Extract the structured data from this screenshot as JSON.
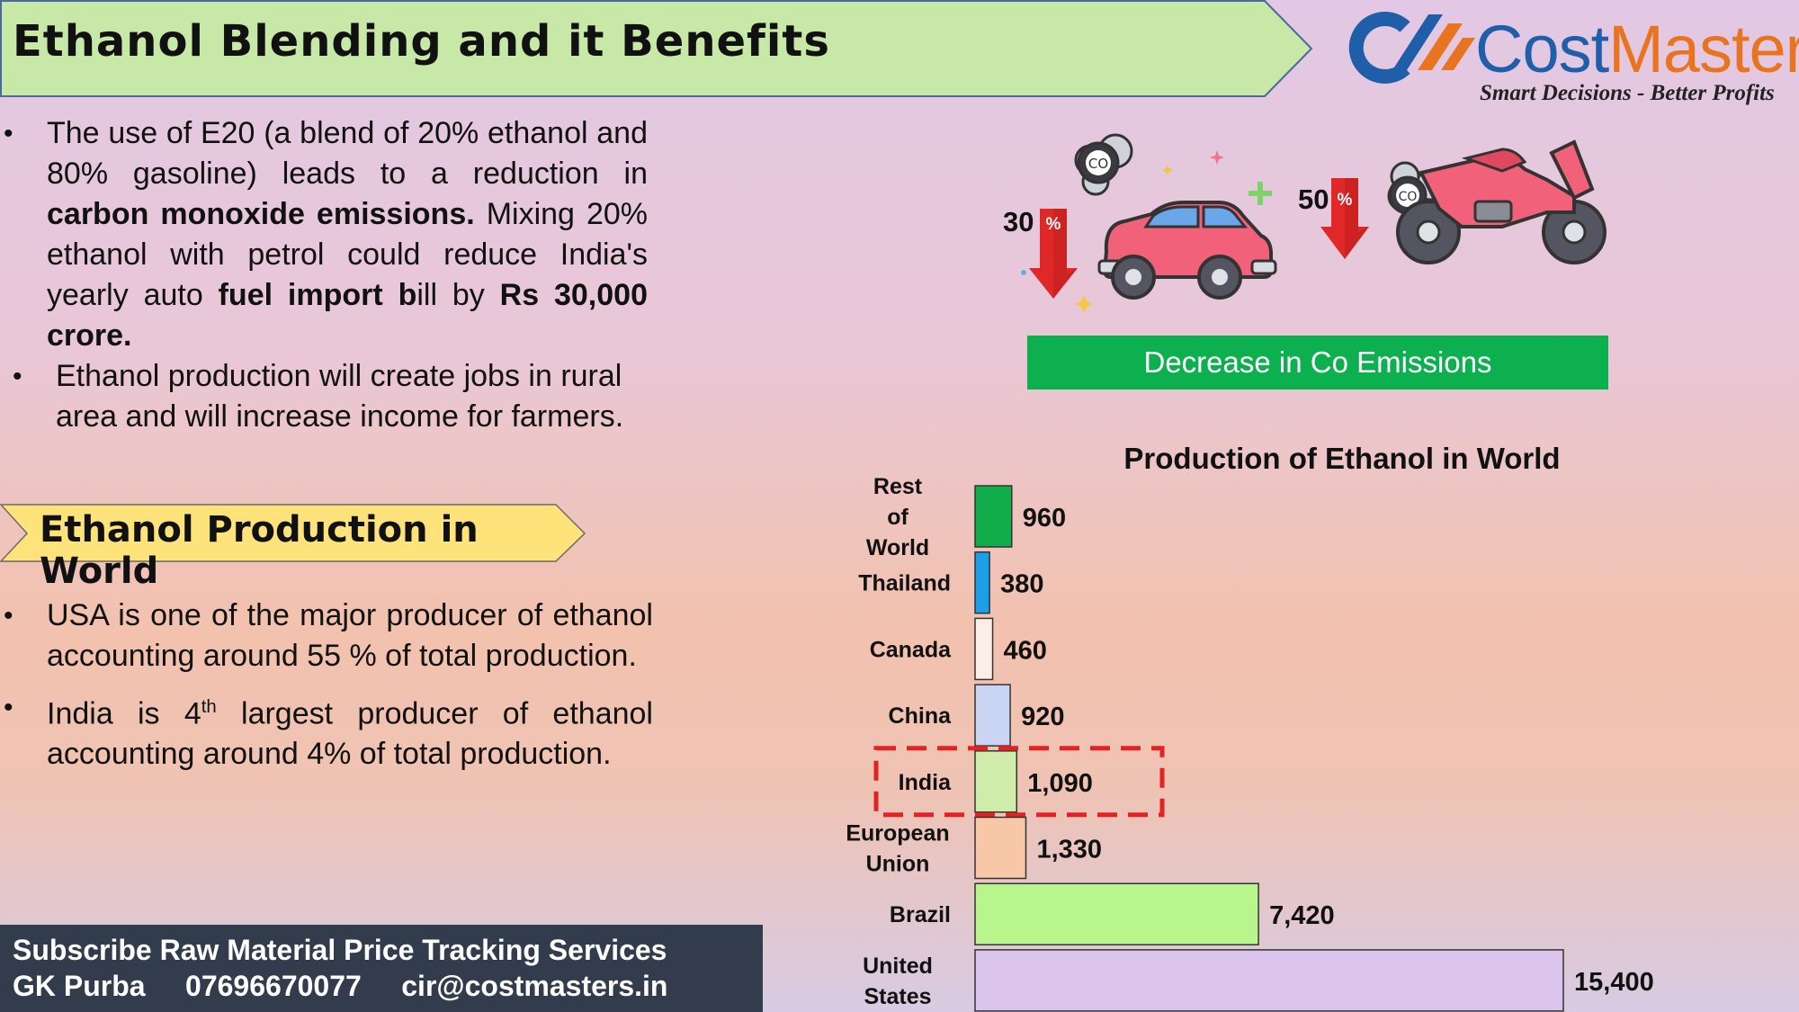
{
  "title": "Ethanol Blending and it Benefits",
  "logo": {
    "name_part1": "Cost",
    "name_part2": "Masters",
    "tagline": "Smart Decisions - Better Profits"
  },
  "bullets_top": [
    {
      "parts": [
        {
          "t": "The use of E20 (a blend of 20% ethanol and 80% gasoline) leads to a reduction in ",
          "b": false
        },
        {
          "t": "carbon monoxide emissions.",
          "b": true
        },
        {
          "t": " Mixing 20% ethanol with petrol could reduce India's yearly auto ",
          "b": false
        },
        {
          "t": "fuel import b",
          "b": true
        },
        {
          "t": "ill by ",
          "b": false
        },
        {
          "t": "Rs 30,000 crore.",
          "b": true
        }
      ]
    },
    {
      "parts": [
        {
          "t": "Ethanol production will create jobs in rural area and will increase income for farmers.",
          "b": false
        }
      ]
    }
  ],
  "section_heading": "Ethanol Production in World",
  "bullets_bottom": {
    "b1": "USA is one of the major producer of ethanol accounting around 55 % of total production.",
    "b2_pre": "India is 4",
    "b2_sup": "th",
    "b2_post": " largest producer of ethanol accounting around 4% of total production."
  },
  "footer": {
    "line1": "Subscribe Raw Material Price Tracking Services",
    "name": "GK Purba",
    "phone": "07696670077",
    "email": "cir@costmasters.in"
  },
  "emissions": {
    "car_reduction": "30",
    "bike_reduction": "50",
    "percent_symbol": "%",
    "co_label": "CO",
    "banner": "Decrease in Co Emissions"
  },
  "chart_data": {
    "type": "bar",
    "orientation": "horizontal",
    "title": "Production of Ethanol in World",
    "categories": [
      "Rest of World",
      "Thailand",
      "Canada",
      "China",
      "India",
      "European Union",
      "Brazil",
      "United States"
    ],
    "values": [
      960,
      380,
      460,
      920,
      1090,
      1330,
      7420,
      15400
    ],
    "value_labels": [
      "960",
      "380",
      "460",
      "920",
      "1,090",
      "1,330",
      "7,420",
      "15,400"
    ],
    "bar_colors": [
      "#10ad4a",
      "#1b9fe8",
      "#fbeee6",
      "#c9d5f2",
      "#cfecaa",
      "#f7c7a8",
      "#b8f58c",
      "#dbc4ec"
    ],
    "highlight_category": "India",
    "highlight_color": "#e42222",
    "xlim": [
      0,
      15400
    ],
    "grid": false,
    "legend": "none"
  }
}
